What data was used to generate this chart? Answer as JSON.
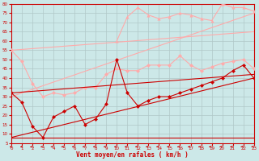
{
  "background_color": "#cce8e8",
  "grid_color": "#b0c8c8",
  "xlabel": "Vent moyen/en rafales ( km/h )",
  "xlabel_color": "#cc0000",
  "tick_color": "#cc0000",
  "xlim": [
    0,
    23
  ],
  "ylim": [
    5,
    80
  ],
  "yticks": [
    5,
    10,
    15,
    20,
    25,
    30,
    35,
    40,
    45,
    50,
    55,
    60,
    65,
    70,
    75,
    80
  ],
  "xticks": [
    0,
    1,
    2,
    3,
    4,
    5,
    6,
    7,
    8,
    9,
    10,
    11,
    12,
    13,
    14,
    15,
    16,
    17,
    18,
    19,
    20,
    21,
    22,
    23
  ],
  "dark_line1_x": [
    0,
    1,
    2,
    3,
    4,
    5,
    6,
    7,
    8,
    9,
    10,
    11,
    12,
    13,
    14,
    15,
    16,
    17,
    18,
    19,
    20,
    21,
    22,
    23
  ],
  "dark_line1_y": [
    32,
    27,
    14,
    8,
    19,
    22,
    25,
    15,
    18,
    26,
    50,
    32,
    25,
    28,
    30,
    30,
    32,
    34,
    36,
    38,
    40,
    44,
    47,
    40
  ],
  "dark_line2_x": [
    0,
    23
  ],
  "dark_line2_y": [
    32,
    42
  ],
  "dark_line3_x": [
    0,
    23
  ],
  "dark_line3_y": [
    8,
    40
  ],
  "dark_line4_x": [
    0,
    23
  ],
  "dark_line4_y": [
    8,
    8
  ],
  "pink_line1_x": [
    0,
    1,
    2,
    3,
    4,
    5,
    6,
    7,
    8,
    9,
    10,
    11,
    12,
    13,
    14,
    15,
    16,
    17,
    18,
    19,
    20,
    21,
    22,
    23
  ],
  "pink_line1_y": [
    55,
    49,
    37,
    30,
    32,
    31,
    32,
    35,
    35,
    42,
    45,
    44,
    44,
    47,
    47,
    47,
    52,
    47,
    44,
    46,
    48,
    49,
    50,
    45
  ],
  "pink_line2_x": [
    0,
    23
  ],
  "pink_line2_y": [
    55,
    65
  ],
  "pink_line3_x": [
    0,
    23
  ],
  "pink_line3_y": [
    30,
    75
  ],
  "pink_upper_x": [
    10,
    11,
    12,
    13,
    14,
    15,
    16,
    17,
    18,
    19,
    20,
    21,
    22,
    23
  ],
  "pink_upper_y": [
    60,
    73,
    78,
    74,
    72,
    73,
    75,
    74,
    72,
    71,
    80,
    78,
    78,
    76
  ],
  "dark_color": "#cc0000",
  "pink_color": "#ffaaaa",
  "arrows_x": [
    0,
    1,
    2,
    3,
    4,
    5,
    6,
    7,
    8,
    9,
    10,
    11,
    12,
    13,
    14,
    15,
    16,
    17,
    18,
    19,
    20,
    21,
    22,
    23
  ],
  "arrows_angles": [
    225,
    225,
    210,
    195,
    180,
    180,
    175,
    175,
    175,
    175,
    175,
    175,
    175,
    175,
    175,
    175,
    180,
    180,
    180,
    180,
    175,
    175,
    175,
    175
  ]
}
